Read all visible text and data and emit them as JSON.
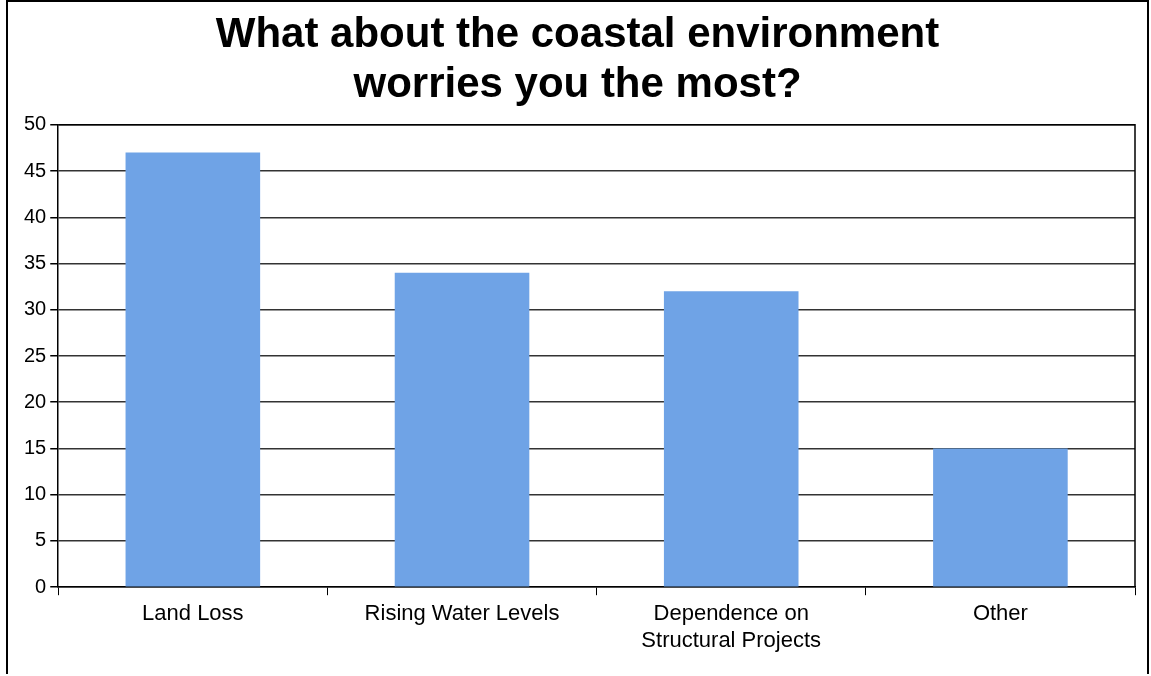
{
  "chart_data": {
    "type": "bar",
    "title": "What about the coastal environment worries you the most?",
    "categories": [
      "Land Loss",
      "Rising Water Levels",
      "Dependence on Structural Projects",
      "Other"
    ],
    "values": [
      47,
      34,
      32,
      15
    ],
    "color": "#6fa3e6",
    "ylim": [
      0,
      50
    ],
    "yticks": [
      0,
      5,
      10,
      15,
      20,
      25,
      30,
      35,
      40,
      45,
      50
    ],
    "grid": "y"
  }
}
